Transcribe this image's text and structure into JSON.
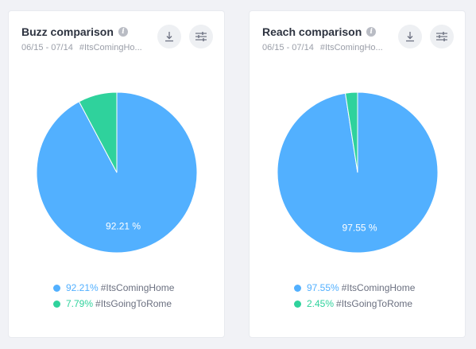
{
  "cards": [
    {
      "title": "Buzz comparison",
      "date_range": "06/15 - 07/14",
      "tag": "#ItsComingHo...",
      "chart_data": {
        "type": "pie",
        "title": "Buzz comparison",
        "slices": [
          {
            "label": "#ItsComingHome",
            "value": 92.21,
            "pct_text": "92.21%",
            "slice_label": "92.21 %",
            "color": "#52b0ff"
          },
          {
            "label": "#ItsGoingToRome",
            "value": 7.79,
            "pct_text": "7.79%",
            "slice_label": "",
            "color": "#2fd29c"
          }
        ]
      }
    },
    {
      "title": "Reach comparison",
      "date_range": "06/15 - 07/14",
      "tag": "#ItsComingHo...",
      "chart_data": {
        "type": "pie",
        "title": "Reach comparison",
        "slices": [
          {
            "label": "#ItsComingHome",
            "value": 97.55,
            "pct_text": "97.55%",
            "slice_label": "97.55 %",
            "color": "#52b0ff"
          },
          {
            "label": "#ItsGoingToRome",
            "value": 2.45,
            "pct_text": "2.45%",
            "slice_label": "",
            "color": "#2fd29c"
          }
        ]
      }
    }
  ],
  "icons": {
    "info": "info-icon",
    "download": "download-icon",
    "settings": "sliders-icon"
  }
}
